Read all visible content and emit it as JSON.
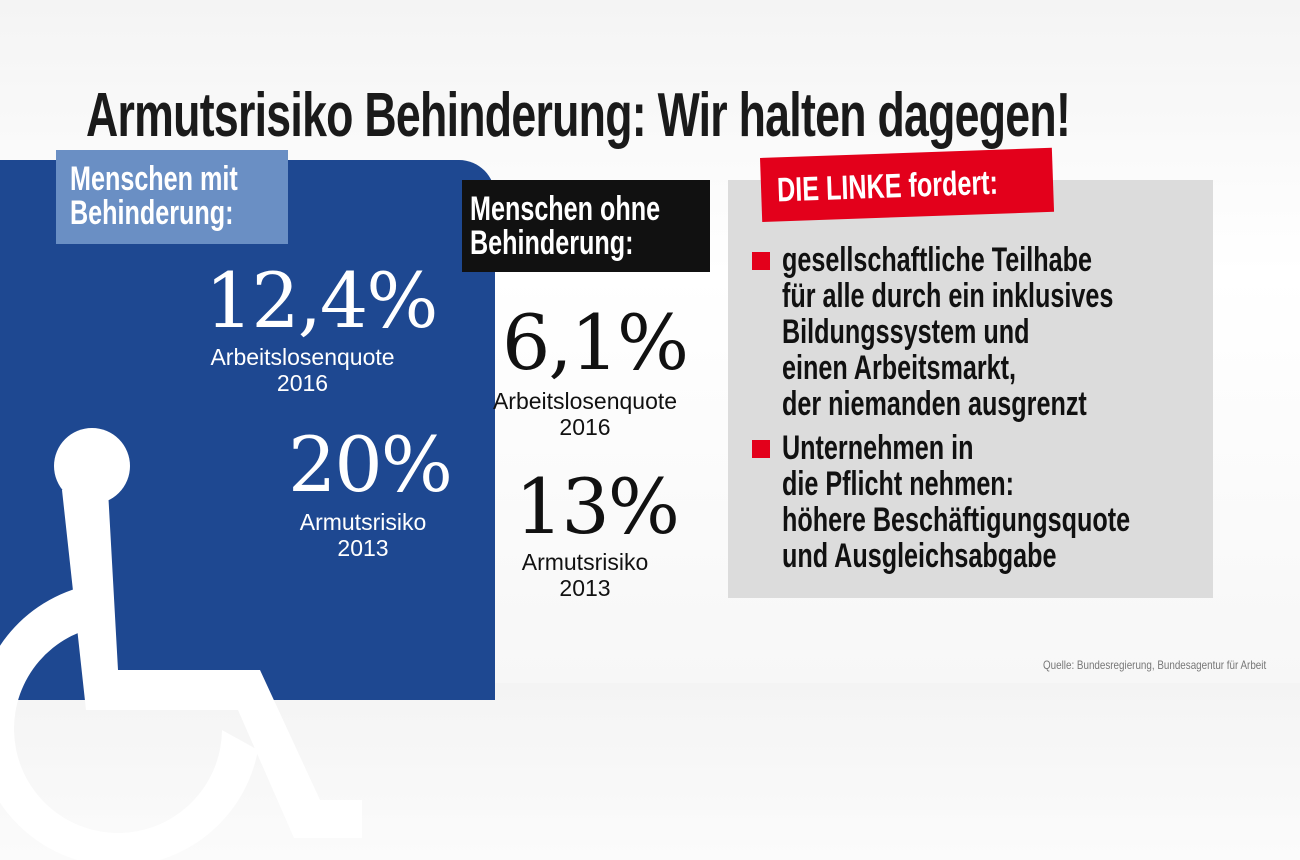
{
  "title": "Armutsrisiko Behinderung: Wir halten dagegen!",
  "colors": {
    "blue": "#1e4891",
    "light_blue": "#6a8fc4",
    "red": "#e3001b",
    "grey_box": "#dcdcdc",
    "black": "#111111"
  },
  "left": {
    "label_line1": "Menschen mit",
    "label_line2": "Behinderung:",
    "icon": "wheelchair-icon",
    "stats": [
      {
        "value": "12,4%",
        "caption_line1": "Arbeitslosenquote",
        "caption_line2": "2016"
      },
      {
        "value": "20%",
        "caption_line1": "Armutsrisiko",
        "caption_line2": "2013"
      }
    ]
  },
  "middle": {
    "label_line1": "Menschen ohne",
    "label_line2": "Behinderung:",
    "stats": [
      {
        "value": "6,1%",
        "caption_line1": "Arbeitslosenquote",
        "caption_line2": "2016"
      },
      {
        "value": "13%",
        "caption_line1": "Armutsrisiko",
        "caption_line2": "2013"
      }
    ]
  },
  "right": {
    "header": "DIE LINKE fordert:",
    "demands": [
      {
        "lines": [
          "gesellschaftliche Teilhabe",
          "für alle durch ein inklusives",
          "Bildungssystem und",
          "einen Arbeitsmarkt,",
          "der niemanden ausgrenzt"
        ]
      },
      {
        "lines": [
          "Unternehmen in",
          "die Pflicht nehmen:",
          "höhere Beschäftigungsquote",
          "und Ausgleichsabgabe"
        ]
      }
    ]
  },
  "source": "Quelle: Bundesregierung, Bundesagentur für Arbeit"
}
